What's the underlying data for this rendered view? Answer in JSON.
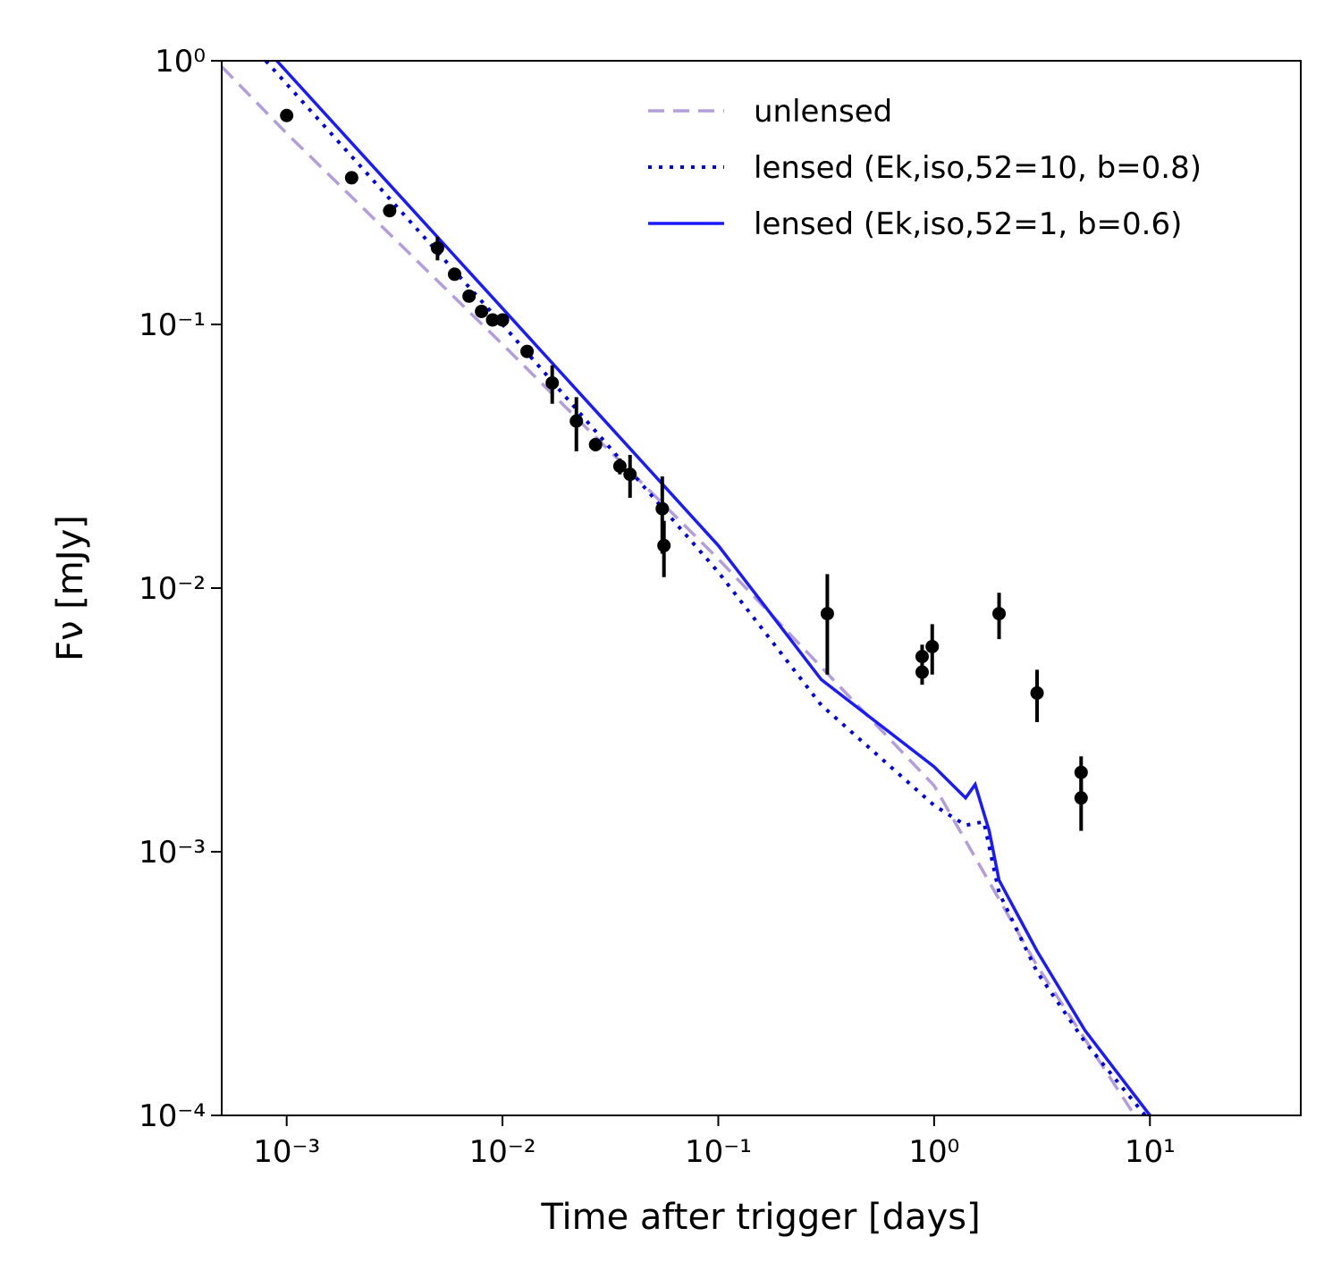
{
  "chart_data": {
    "type": "line",
    "xlabel": "Time after trigger [days]",
    "ylabel": "Fν [mJy]",
    "xscale": "log",
    "yscale": "log",
    "xlim": [
      0.0005,
      50
    ],
    "ylim": [
      0.0001,
      1
    ],
    "xticks": [
      {
        "value": 0.001,
        "label": "10⁻³"
      },
      {
        "value": 0.01,
        "label": "10⁻²"
      },
      {
        "value": 0.1,
        "label": "10⁻¹"
      },
      {
        "value": 1,
        "label": "10⁰"
      },
      {
        "value": 10,
        "label": "10¹"
      }
    ],
    "yticks": [
      {
        "value": 0.0001,
        "label": "10⁻⁴"
      },
      {
        "value": 0.001,
        "label": "10⁻³"
      },
      {
        "value": 0.01,
        "label": "10⁻²"
      },
      {
        "value": 0.1,
        "label": "10⁻¹"
      },
      {
        "value": 1,
        "label": "10⁰"
      }
    ],
    "legend": "upper right",
    "series": [
      {
        "name": "unlensed",
        "color": "#b39ddb",
        "style": "dashed",
        "x": [
          0.0005,
          0.001,
          0.01,
          0.1,
          1,
          3,
          8.5
        ],
        "y": [
          0.95,
          0.53,
          0.084,
          0.0129,
          0.00178,
          0.00037,
          0.0001
        ]
      },
      {
        "name": "lensed (Ek,iso,52=10, b=0.8)",
        "color": "#0000dd",
        "style": "dotted",
        "x": [
          0.0008,
          0.01,
          0.1,
          0.3,
          1,
          1.4,
          1.7,
          2,
          3,
          5,
          9.5
        ],
        "y": [
          1,
          0.1,
          0.0115,
          0.0036,
          0.0015,
          0.00126,
          0.0013,
          0.0007,
          0.00035,
          0.00019,
          0.0001
        ]
      },
      {
        "name": "lensed (Ek,iso,52=1, b=0.6)",
        "color": "#1a1aff",
        "style": "solid",
        "x": [
          0.0009,
          0.01,
          0.1,
          0.3,
          1,
          1.4,
          1.55,
          1.8,
          2,
          3,
          5,
          10
        ],
        "y": [
          1,
          0.115,
          0.0145,
          0.0045,
          0.0021,
          0.0016,
          0.0018,
          0.0012,
          0.00078,
          0.00042,
          0.00021,
          0.0001
        ]
      }
    ],
    "points": {
      "color": "#000000",
      "x": [
        0.001,
        0.002,
        0.003,
        0.005,
        0.006,
        0.007,
        0.008,
        0.009,
        0.01,
        0.013,
        0.017,
        0.022,
        0.027,
        0.035,
        0.039,
        0.055,
        0.056,
        0.32,
        0.88,
        0.88,
        0.98,
        2.0,
        3.0,
        4.8,
        4.8
      ],
      "y": [
        0.62,
        0.36,
        0.27,
        0.195,
        0.155,
        0.128,
        0.112,
        0.104,
        0.104,
        0.079,
        0.06,
        0.043,
        0.035,
        0.029,
        0.027,
        0.02,
        0.0145,
        0.008,
        0.0055,
        0.0048,
        0.006,
        0.008,
        0.004,
        0.002,
        0.0016
      ],
      "yerr": [
        0,
        0,
        0,
        0.02,
        0,
        0,
        0,
        0,
        0,
        0.004,
        0.01,
        0.01,
        0.002,
        0.002,
        0.005,
        0.0065,
        0.0035,
        0.0033,
        0.0006,
        0.0005,
        0.0013,
        0.0016,
        0.0009,
        0.0003,
        0.0004
      ]
    }
  }
}
